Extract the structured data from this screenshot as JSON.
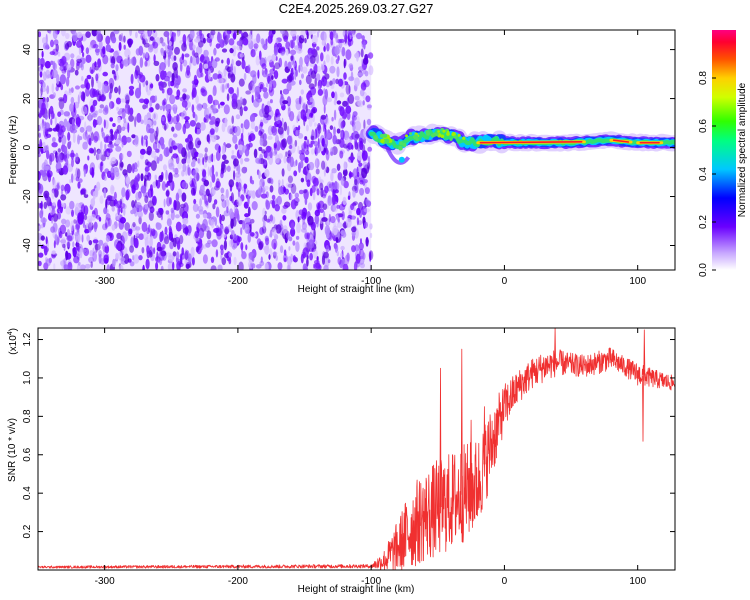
{
  "title": "C2E4.2025.269.03.27.G27",
  "colors": {
    "snr_line": "#f03030",
    "axis": "#000000",
    "background": "#ffffff"
  },
  "chart_data": [
    {
      "type": "heatmap",
      "name": "spectrogram",
      "xlabel": "Height of straight line (km)",
      "ylabel": "Frequency (Hz)",
      "xlim": [
        -350,
        128
      ],
      "ylim": [
        -50,
        48
      ],
      "x_ticks": [
        -300,
        -200,
        -100,
        0,
        100
      ],
      "x_tick_labels": [
        "-300",
        "-200",
        "-100",
        "0",
        "100"
      ],
      "y_ticks": [
        -40,
        -20,
        0,
        20,
        40
      ],
      "y_tick_labels": [
        "-40",
        "-20",
        "0",
        "20",
        "40"
      ],
      "noise_region_x": [
        -350,
        -100
      ],
      "signal_track": [
        {
          "x": -100,
          "f": 6
        },
        {
          "x": -90,
          "f": 3
        },
        {
          "x": -80,
          "f": 1
        },
        {
          "x": -70,
          "f": 4
        },
        {
          "x": -60,
          "f": 5
        },
        {
          "x": -50,
          "f": 6
        },
        {
          "x": -40,
          "f": 5
        },
        {
          "x": -30,
          "f": 2
        },
        {
          "x": -20,
          "f": 2
        },
        {
          "x": -10,
          "f": 3
        },
        {
          "x": 0,
          "f": 2
        },
        {
          "x": 20,
          "f": 2
        },
        {
          "x": 50,
          "f": 2
        },
        {
          "x": 80,
          "f": 3
        },
        {
          "x": 100,
          "f": 2
        },
        {
          "x": 128,
          "f": 2
        }
      ],
      "colorbar": {
        "label": "Normalized spectral amplitude",
        "ticks": [
          0.0,
          0.2,
          0.4,
          0.6,
          0.8
        ],
        "tick_labels": [
          "0.0",
          "0.2",
          "0.4",
          "0.6",
          "0.8"
        ],
        "range": [
          0,
          1
        ]
      }
    },
    {
      "type": "line",
      "name": "snr",
      "xlabel": "Height of straight line (km)",
      "ylabel": "SNR (10 * v/v)",
      "y_scale_note": "(x10",
      "y_scale_exp": "4",
      "y_scale_close": ")",
      "xlim": [
        -350,
        128
      ],
      "ylim": [
        0,
        1.26
      ],
      "x_ticks": [
        -300,
        -200,
        -100,
        0,
        100
      ],
      "x_tick_labels": [
        "-300",
        "-200",
        "-100",
        "0",
        "100"
      ],
      "y_ticks": [
        0.2,
        0.4,
        0.6,
        0.8,
        1.0,
        1.2
      ],
      "y_tick_labels": [
        "0.2",
        "0.4",
        "0.6",
        "0.8",
        "1.0",
        "1.2"
      ],
      "envelope": {
        "x": [
          -350,
          -100,
          -90,
          -80,
          -70,
          -60,
          -50,
          -40,
          -30,
          -20,
          -10,
          0,
          10,
          20,
          30,
          40,
          50,
          60,
          70,
          80,
          90,
          100,
          110,
          128
        ],
        "mean": [
          0.015,
          0.02,
          0.05,
          0.12,
          0.22,
          0.28,
          0.32,
          0.36,
          0.4,
          0.45,
          0.65,
          0.85,
          0.95,
          1.02,
          1.06,
          1.08,
          1.07,
          1.06,
          1.08,
          1.1,
          1.06,
          1.02,
          1.0,
          0.97
        ],
        "spread": [
          0.006,
          0.01,
          0.06,
          0.14,
          0.22,
          0.24,
          0.26,
          0.26,
          0.26,
          0.24,
          0.2,
          0.12,
          0.09,
          0.08,
          0.08,
          0.07,
          0.06,
          0.06,
          0.06,
          0.06,
          0.05,
          0.06,
          0.05,
          0.04
        ]
      },
      "spikes": [
        {
          "x": -48,
          "y": 1.05
        },
        {
          "x": -32,
          "y": 1.15
        },
        {
          "x": -25,
          "y": 0.78
        },
        {
          "x": -15,
          "y": 0.85
        },
        {
          "x": 38,
          "y": 1.26
        },
        {
          "x": 104,
          "y": 0.67
        },
        {
          "x": 105,
          "y": 1.25
        }
      ]
    }
  ]
}
